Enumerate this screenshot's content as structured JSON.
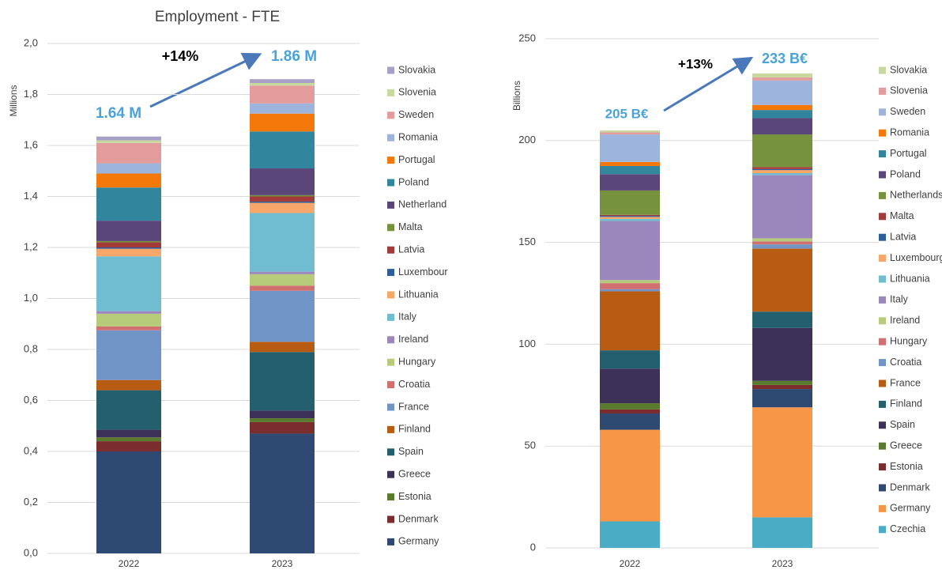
{
  "chart_data": [
    {
      "type": "stacked_bar",
      "title": "Employment - FTE",
      "y_label": "Millions",
      "categories": [
        "2022",
        "2023"
      ],
      "ylim": [
        0,
        2.0
      ],
      "yticks": [
        {
          "value": 0,
          "label": "0,0"
        },
        {
          "value": 0.2,
          "label": "0,2"
        },
        {
          "value": 0.4,
          "label": "0,4"
        },
        {
          "value": 0.6,
          "label": "0,6"
        },
        {
          "value": 0.8,
          "label": "0,8"
        },
        {
          "value": 1.0,
          "label": "1,0"
        },
        {
          "value": 1.2,
          "label": "1,2"
        },
        {
          "value": 1.4,
          "label": "1,4"
        },
        {
          "value": 1.6,
          "label": "1,6"
        },
        {
          "value": 1.8,
          "label": "1,8"
        },
        {
          "value": 2.0,
          "label": "2,0"
        }
      ],
      "grid": true,
      "annotations": [
        "+14%",
        "1.64 M",
        "1.86 M"
      ],
      "series": [
        {
          "name": "Germany",
          "color": "#2e4a73",
          "values": [
            0.4,
            0.47
          ]
        },
        {
          "name": "Denmark",
          "color": "#7b2c2c",
          "values": [
            0.04,
            0.045
          ]
        },
        {
          "name": "Estonia",
          "color": "#5a7a2e",
          "values": [
            0.015,
            0.015
          ]
        },
        {
          "name": "Greece",
          "color": "#3e3158",
          "values": [
            0.03,
            0.03
          ]
        },
        {
          "name": "Spain",
          "color": "#245f6e",
          "values": [
            0.155,
            0.23
          ]
        },
        {
          "name": "Finland",
          "color": "#b85c14",
          "values": [
            0.04,
            0.04
          ]
        },
        {
          "name": "France",
          "color": "#7295c8",
          "values": [
            0.195,
            0.2
          ]
        },
        {
          "name": "Croatia",
          "color": "#d07070",
          "values": [
            0.015,
            0.02
          ]
        },
        {
          "name": "Hungary",
          "color": "#b6cc7a",
          "values": [
            0.05,
            0.045
          ]
        },
        {
          "name": "Ireland",
          "color": "#9b87bb",
          "values": [
            0.01,
            0.01
          ]
        },
        {
          "name": "Italy",
          "color": "#70bcd1",
          "values": [
            0.215,
            0.23
          ]
        },
        {
          "name": "Lithuania",
          "color": "#f8a76a",
          "values": [
            0.03,
            0.04
          ]
        },
        {
          "name": "Luxembour",
          "color": "#2e5d9a",
          "values": [
            0.005,
            0.005
          ]
        },
        {
          "name": "Latvia",
          "color": "#a33a3a",
          "values": [
            0.02,
            0.02
          ]
        },
        {
          "name": "Malta",
          "color": "#76923c",
          "values": [
            0.005,
            0.005
          ]
        },
        {
          "name": "Netherland",
          "color": "#5b467a",
          "values": [
            0.08,
            0.105
          ]
        },
        {
          "name": "Poland",
          "color": "#31859c",
          "values": [
            0.13,
            0.145
          ]
        },
        {
          "name": "Portugal",
          "color": "#f5790a",
          "values": [
            0.055,
            0.07
          ]
        },
        {
          "name": "Romania",
          "color": "#9db5dc",
          "values": [
            0.04,
            0.04
          ]
        },
        {
          "name": "Sweden",
          "color": "#e39b9b",
          "values": [
            0.08,
            0.07
          ]
        },
        {
          "name": "Slovenia",
          "color": "#c8d9a0",
          "values": [
            0.01,
            0.01
          ]
        },
        {
          "name": "Slovakia",
          "color": "#a9a0c8",
          "values": [
            0.015,
            0.015
          ]
        }
      ]
    },
    {
      "type": "stacked_bar",
      "y_label": "Billions",
      "categories": [
        "2022",
        "2023"
      ],
      "ylim": [
        0,
        250
      ],
      "yticks": [
        0,
        50,
        100,
        150,
        200,
        250
      ],
      "grid": true,
      "annotations": [
        "+13%",
        "205 B€",
        "233 B€"
      ],
      "series": [
        {
          "name": "Czechia",
          "color": "#4bacc6",
          "values": [
            13,
            15
          ]
        },
        {
          "name": "Germany",
          "color": "#f79646",
          "values": [
            45,
            54
          ]
        },
        {
          "name": "Denmark",
          "color": "#2e4a73",
          "values": [
            8,
            9
          ]
        },
        {
          "name": "Estonia",
          "color": "#7b2c2c",
          "values": [
            2,
            2
          ]
        },
        {
          "name": "Greece",
          "color": "#5a7a2e",
          "values": [
            3,
            2
          ]
        },
        {
          "name": "Spain",
          "color": "#3e3158",
          "values": [
            17,
            26
          ]
        },
        {
          "name": "Finland",
          "color": "#245f6e",
          "values": [
            9,
            8
          ]
        },
        {
          "name": "France",
          "color": "#b85c14",
          "values": [
            29,
            31
          ]
        },
        {
          "name": "Croatia",
          "color": "#7295c8",
          "values": [
            1,
            2
          ]
        },
        {
          "name": "Hungary",
          "color": "#d07070",
          "values": [
            3,
            1.5
          ]
        },
        {
          "name": "Ireland",
          "color": "#b6cc7a",
          "values": [
            1.5,
            1.5
          ]
        },
        {
          "name": "Italy",
          "color": "#9b87bb",
          "values": [
            29,
            31
          ]
        },
        {
          "name": "Lithuania",
          "color": "#70bcd1",
          "values": [
            1,
            1
          ]
        },
        {
          "name": "Luxembourg",
          "color": "#f8a76a",
          "values": [
            1,
            1.5
          ]
        },
        {
          "name": "Latvia",
          "color": "#2e5d9a",
          "values": [
            0.5,
            0.5
          ]
        },
        {
          "name": "Malta",
          "color": "#a33a3a",
          "values": [
            0.5,
            1
          ]
        },
        {
          "name": "Netherlands",
          "color": "#76923c",
          "values": [
            12,
            16
          ]
        },
        {
          "name": "Poland",
          "color": "#5b467a",
          "values": [
            8,
            8
          ]
        },
        {
          "name": "Portugal",
          "color": "#31859c",
          "values": [
            4,
            4
          ]
        },
        {
          "name": "Romania",
          "color": "#f5790a",
          "values": [
            2,
            2.5
          ]
        },
        {
          "name": "Sweden",
          "color": "#9db5dc",
          "values": [
            13.5,
            12
          ]
        },
        {
          "name": "Slovenia",
          "color": "#e39b9b",
          "values": [
            1,
            1.5
          ]
        },
        {
          "name": "Slovakia",
          "color": "#c8d9a0",
          "values": [
            1,
            2
          ]
        }
      ]
    }
  ]
}
